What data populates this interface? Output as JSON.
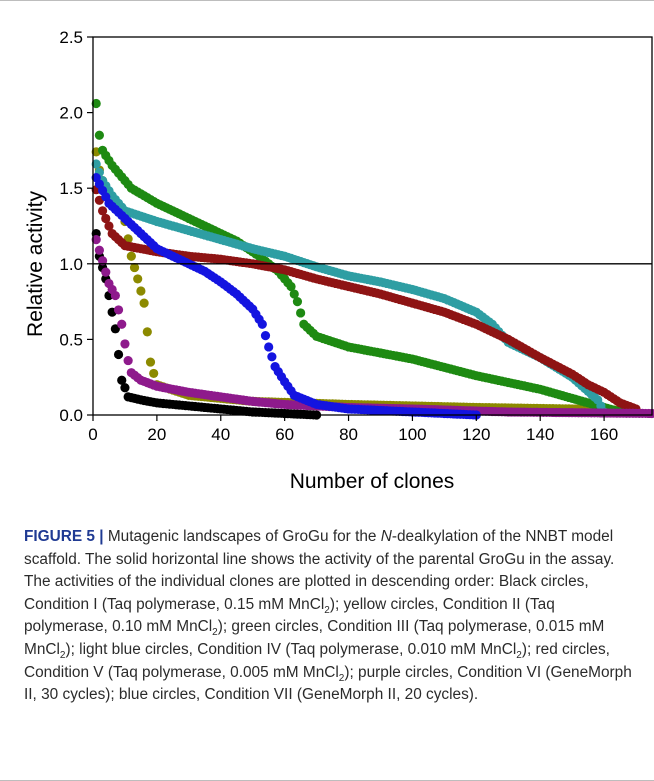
{
  "chart_data": {
    "type": "scatter",
    "title": "",
    "xlabel": "Number of clones",
    "ylabel": "Relative activity",
    "xlim": [
      0,
      175
    ],
    "ylim": [
      0,
      2.5
    ],
    "xticks": [
      "0",
      "20",
      "40",
      "60",
      "80",
      "100",
      "120",
      "140",
      "160"
    ],
    "yticks": [
      "0.0",
      "0.5",
      "1.0",
      "1.5",
      "2.0",
      "2.5"
    ],
    "grid": false,
    "reference_line_y": 1.0,
    "series": [
      {
        "color": "#000000",
        "n": 70,
        "anchors": [
          [
            1,
            1.2
          ],
          [
            2,
            1.05
          ],
          [
            4,
            0.9
          ],
          [
            6,
            0.68
          ],
          [
            7,
            0.57
          ],
          [
            9,
            0.23
          ],
          [
            10,
            0.18
          ],
          [
            11,
            0.12
          ],
          [
            15,
            0.1
          ],
          [
            20,
            0.08
          ],
          [
            30,
            0.06
          ],
          [
            40,
            0.04
          ],
          [
            50,
            0.02
          ],
          [
            60,
            0.01
          ],
          [
            70,
            0.0
          ]
        ]
      },
      {
        "color": "#8c8a00",
        "n": 170,
        "anchors": [
          [
            1,
            1.74
          ],
          [
            2,
            1.62
          ],
          [
            3,
            1.55
          ],
          [
            5,
            1.45
          ],
          [
            8,
            1.38
          ],
          [
            10,
            1.28
          ],
          [
            12,
            1.05
          ],
          [
            14,
            0.9
          ],
          [
            16,
            0.74
          ],
          [
            17,
            0.55
          ],
          [
            18,
            0.35
          ],
          [
            20,
            0.2
          ],
          [
            30,
            0.13
          ],
          [
            50,
            0.09
          ],
          [
            80,
            0.07
          ],
          [
            120,
            0.05
          ],
          [
            150,
            0.04
          ],
          [
            170,
            0.03
          ]
        ]
      },
      {
        "color": "#1e8a12",
        "n": 170,
        "anchors": [
          [
            1,
            2.06
          ],
          [
            2,
            1.85
          ],
          [
            3,
            1.75
          ],
          [
            6,
            1.65
          ],
          [
            12,
            1.5
          ],
          [
            20,
            1.4
          ],
          [
            30,
            1.3
          ],
          [
            40,
            1.2
          ],
          [
            45,
            1.15
          ],
          [
            52,
            1.05
          ],
          [
            58,
            0.95
          ],
          [
            62,
            0.85
          ],
          [
            64,
            0.75
          ],
          [
            66,
            0.6
          ],
          [
            70,
            0.52
          ],
          [
            80,
            0.45
          ],
          [
            100,
            0.37
          ],
          [
            120,
            0.26
          ],
          [
            140,
            0.17
          ],
          [
            155,
            0.08
          ],
          [
            165,
            0.02
          ]
        ]
      },
      {
        "color": "#2e9ea3",
        "n": 160,
        "anchors": [
          [
            1,
            1.66
          ],
          [
            3,
            1.55
          ],
          [
            6,
            1.45
          ],
          [
            10,
            1.35
          ],
          [
            20,
            1.28
          ],
          [
            30,
            1.22
          ],
          [
            40,
            1.16
          ],
          [
            50,
            1.1
          ],
          [
            60,
            1.05
          ],
          [
            70,
            0.98
          ],
          [
            80,
            0.92
          ],
          [
            90,
            0.88
          ],
          [
            100,
            0.83
          ],
          [
            110,
            0.77
          ],
          [
            120,
            0.68
          ],
          [
            125,
            0.6
          ],
          [
            130,
            0.48
          ],
          [
            140,
            0.38
          ],
          [
            150,
            0.25
          ],
          [
            158,
            0.1
          ],
          [
            160,
            0.02
          ]
        ]
      },
      {
        "color": "#8e1414",
        "n": 170,
        "anchors": [
          [
            1,
            1.49
          ],
          [
            3,
            1.35
          ],
          [
            6,
            1.2
          ],
          [
            10,
            1.12
          ],
          [
            20,
            1.08
          ],
          [
            30,
            1.05
          ],
          [
            40,
            1.03
          ],
          [
            50,
            1.0
          ],
          [
            60,
            0.96
          ],
          [
            70,
            0.9
          ],
          [
            80,
            0.85
          ],
          [
            90,
            0.8
          ],
          [
            100,
            0.74
          ],
          [
            110,
            0.68
          ],
          [
            120,
            0.6
          ],
          [
            130,
            0.5
          ],
          [
            140,
            0.38
          ],
          [
            150,
            0.27
          ],
          [
            155,
            0.2
          ],
          [
            160,
            0.15
          ],
          [
            165,
            0.08
          ],
          [
            170,
            0.04
          ]
        ]
      },
      {
        "color": "#8e1a8c",
        "n": 175,
        "anchors": [
          [
            1,
            1.16
          ],
          [
            3,
            1.02
          ],
          [
            5,
            0.87
          ],
          [
            7,
            0.79
          ],
          [
            9,
            0.6
          ],
          [
            10,
            0.47
          ],
          [
            11,
            0.36
          ],
          [
            12,
            0.28
          ],
          [
            15,
            0.23
          ],
          [
            20,
            0.19
          ],
          [
            30,
            0.15
          ],
          [
            40,
            0.12
          ],
          [
            50,
            0.09
          ],
          [
            60,
            0.07
          ],
          [
            80,
            0.05
          ],
          [
            100,
            0.04
          ],
          [
            130,
            0.02
          ],
          [
            175,
            0.01
          ]
        ]
      },
      {
        "color": "#1414e0",
        "n": 120,
        "anchors": [
          [
            1,
            1.57
          ],
          [
            5,
            1.4
          ],
          [
            10,
            1.3
          ],
          [
            14,
            1.22
          ],
          [
            20,
            1.1
          ],
          [
            30,
            1.0
          ],
          [
            35,
            0.95
          ],
          [
            40,
            0.88
          ],
          [
            45,
            0.8
          ],
          [
            50,
            0.7
          ],
          [
            53,
            0.6
          ],
          [
            55,
            0.45
          ],
          [
            57,
            0.32
          ],
          [
            60,
            0.22
          ],
          [
            63,
            0.13
          ],
          [
            70,
            0.07
          ],
          [
            80,
            0.04
          ],
          [
            100,
            0.02
          ],
          [
            120,
            0.0
          ]
        ]
      }
    ]
  },
  "caption": {
    "label": "FIGURE 5 |",
    "text_1": " Mutagenic landscapes of GroGu for the ",
    "italic": "N",
    "text_2": "-dealkylation of the NNBT model scaffold. The solid horizontal line shows the activity of the parental GroGu in the assay. The activities of the individual clones are plotted in descending order: Black circles, Condition I (Taq polymerase, 0.15 mM MnCl",
    "text_3": "); yellow circles, Condition II (Taq polymerase, 0.10 mM MnCl",
    "text_4": "); green circles, Condition III (Taq polymerase, 0.015 mM MnCl",
    "text_5": "); light blue circles, Condition IV (Taq polymerase, 0.010 mM MnCl",
    "text_6": "); red circles, Condition V (Taq polymerase, 0.005 mM MnCl",
    "text_7": "); purple circles, Condition VI (GeneMorph II, 30 cycles); blue circles, Condition VII (GeneMorph II, 20 cycles).",
    "subscript": "2"
  }
}
